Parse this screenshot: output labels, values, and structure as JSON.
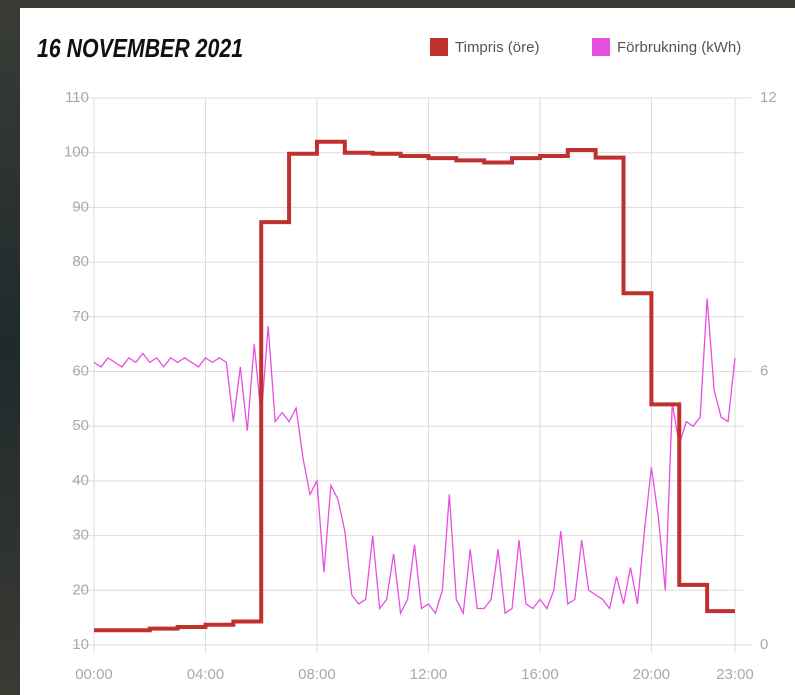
{
  "chart_data": {
    "type": "line",
    "title": "16 NOVEMBER 2021",
    "legend": "top-right",
    "grid": true,
    "xlim": [
      0,
      23
    ],
    "xticks": [
      {
        "value": 0,
        "label": "00:00"
      },
      {
        "value": 4,
        "label": "04:00"
      },
      {
        "value": 8,
        "label": "08:00"
      },
      {
        "value": 12,
        "label": "12:00"
      },
      {
        "value": 16,
        "label": "16:00"
      },
      {
        "value": 20,
        "label": "20:00"
      },
      {
        "value": 23,
        "label": "23:00"
      }
    ],
    "ylim": [
      10,
      110
    ],
    "yticks": [
      10,
      20,
      30,
      40,
      50,
      60,
      70,
      80,
      90,
      100,
      110
    ],
    "y2lim": [
      0,
      12
    ],
    "y2ticks": [
      0,
      6,
      12
    ],
    "series": [
      {
        "name": "Timpris (öre)",
        "color": "#c0302e",
        "axis": "y",
        "step": true,
        "x": [
          0,
          1,
          2,
          3,
          4,
          5,
          6,
          7,
          8,
          9,
          10,
          11,
          12,
          13,
          14,
          15,
          16,
          17,
          18,
          19,
          20,
          21,
          22,
          23
        ],
        "values": [
          12.7,
          12.7,
          13.0,
          13.3,
          13.7,
          14.3,
          87.3,
          99.8,
          102,
          100,
          99.8,
          99.4,
          99.0,
          98.6,
          98.2,
          99.0,
          99.4,
          100.5,
          99.1,
          74.3,
          54.0,
          21.0,
          16.2,
          16.2
        ]
      },
      {
        "name": "Förbrukning (kWh)",
        "color": "#e84fe0",
        "axis": "y2",
        "x": [
          0,
          0.25,
          0.5,
          0.75,
          1,
          1.25,
          1.5,
          1.75,
          2,
          2.25,
          2.5,
          2.75,
          3,
          3.25,
          3.5,
          3.75,
          4,
          4.25,
          4.5,
          4.75,
          5,
          5.25,
          5.5,
          5.75,
          6,
          6.25,
          6.5,
          6.75,
          7,
          7.25,
          7.5,
          7.75,
          8,
          8.25,
          8.5,
          8.75,
          9,
          9.25,
          9.5,
          9.75,
          10,
          10.25,
          10.5,
          10.75,
          11,
          11.25,
          11.5,
          11.75,
          12,
          12.25,
          12.5,
          12.75,
          13,
          13.25,
          13.5,
          13.75,
          14,
          14.25,
          14.5,
          14.75,
          15,
          15.25,
          15.5,
          15.75,
          16,
          16.25,
          16.5,
          16.75,
          17,
          17.25,
          17.5,
          17.75,
          18,
          18.25,
          18.5,
          18.75,
          19,
          19.25,
          19.5,
          19.75,
          20,
          20.25,
          20.5,
          20.75,
          21,
          21.25,
          21.5,
          21.75,
          22,
          22.25,
          22.5,
          22.75,
          23
        ],
        "values": [
          6.2,
          6.1,
          6.3,
          6.2,
          6.1,
          6.3,
          6.2,
          6.4,
          6.2,
          6.3,
          6.1,
          6.3,
          6.2,
          6.3,
          6.2,
          6.1,
          6.3,
          6.2,
          6.3,
          6.2,
          4.9,
          6.1,
          4.7,
          6.6,
          5.0,
          7.0,
          4.9,
          5.1,
          4.9,
          5.2,
          4.1,
          3.3,
          3.6,
          1.6,
          3.5,
          3.2,
          2.5,
          1.1,
          0.9,
          1.0,
          2.4,
          0.8,
          1.0,
          2.0,
          0.7,
          1.0,
          2.2,
          0.8,
          0.9,
          0.7,
          1.2,
          3.3,
          1.0,
          0.7,
          2.1,
          0.8,
          0.8,
          1.0,
          2.1,
          0.7,
          0.8,
          2.3,
          0.9,
          0.8,
          1.0,
          0.8,
          1.2,
          2.5,
          0.9,
          1.0,
          2.3,
          1.2,
          1.1,
          1.0,
          0.8,
          1.5,
          0.9,
          1.7,
          0.9,
          2.5,
          3.9,
          2.8,
          1.2,
          5.3,
          4.4,
          4.9,
          4.8,
          5.0,
          7.6,
          5.6,
          5.0,
          4.9,
          6.3
        ]
      }
    ]
  }
}
